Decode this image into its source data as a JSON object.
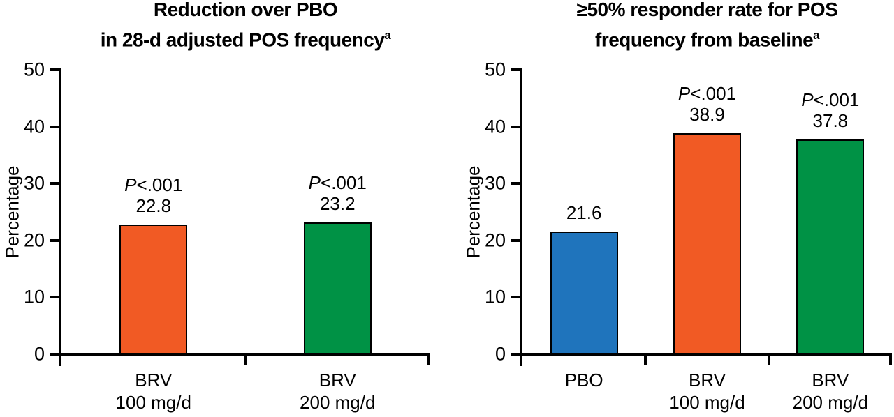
{
  "figure": {
    "background": "#ffffff",
    "axis_color": "#000000",
    "text_color": "#000000"
  },
  "chart_data": [
    {
      "type": "bar",
      "title_lines": [
        "Reduction over PBO",
        "in 28-d adjusted POS frequency"
      ],
      "title_superscript": "a",
      "ylabel": "Percentage",
      "ylim": [
        0,
        50
      ],
      "yticks": [
        0,
        10,
        20,
        30,
        40,
        50
      ],
      "grid": false,
      "legend": null,
      "categories": [
        [
          "BRV",
          "100 mg/d"
        ],
        [
          "BRV",
          "200 mg/d"
        ]
      ],
      "values": [
        22.8,
        23.2
      ],
      "value_labels": [
        "22.8",
        "23.2"
      ],
      "p_labels": [
        "P<.001",
        "P<.001"
      ],
      "bar_colors": [
        "#f15a24",
        "#009245"
      ]
    },
    {
      "type": "bar",
      "title_lines": [
        "≥50% responder rate for POS",
        "frequency from baseline"
      ],
      "title_superscript": "a",
      "ylabel": "Percentage",
      "ylim": [
        0,
        50
      ],
      "yticks": [
        0,
        10,
        20,
        30,
        40,
        50
      ],
      "grid": false,
      "legend": null,
      "categories": [
        [
          "PBO"
        ],
        [
          "BRV",
          "100 mg/d"
        ],
        [
          "BRV",
          "200 mg/d"
        ]
      ],
      "values": [
        21.6,
        38.9,
        37.8
      ],
      "value_labels": [
        "21.6",
        "38.9",
        "37.8"
      ],
      "p_labels": [
        null,
        "P<.001",
        "P<.001"
      ],
      "bar_colors": [
        "#1f74bc",
        "#f15a24",
        "#009245"
      ]
    }
  ]
}
